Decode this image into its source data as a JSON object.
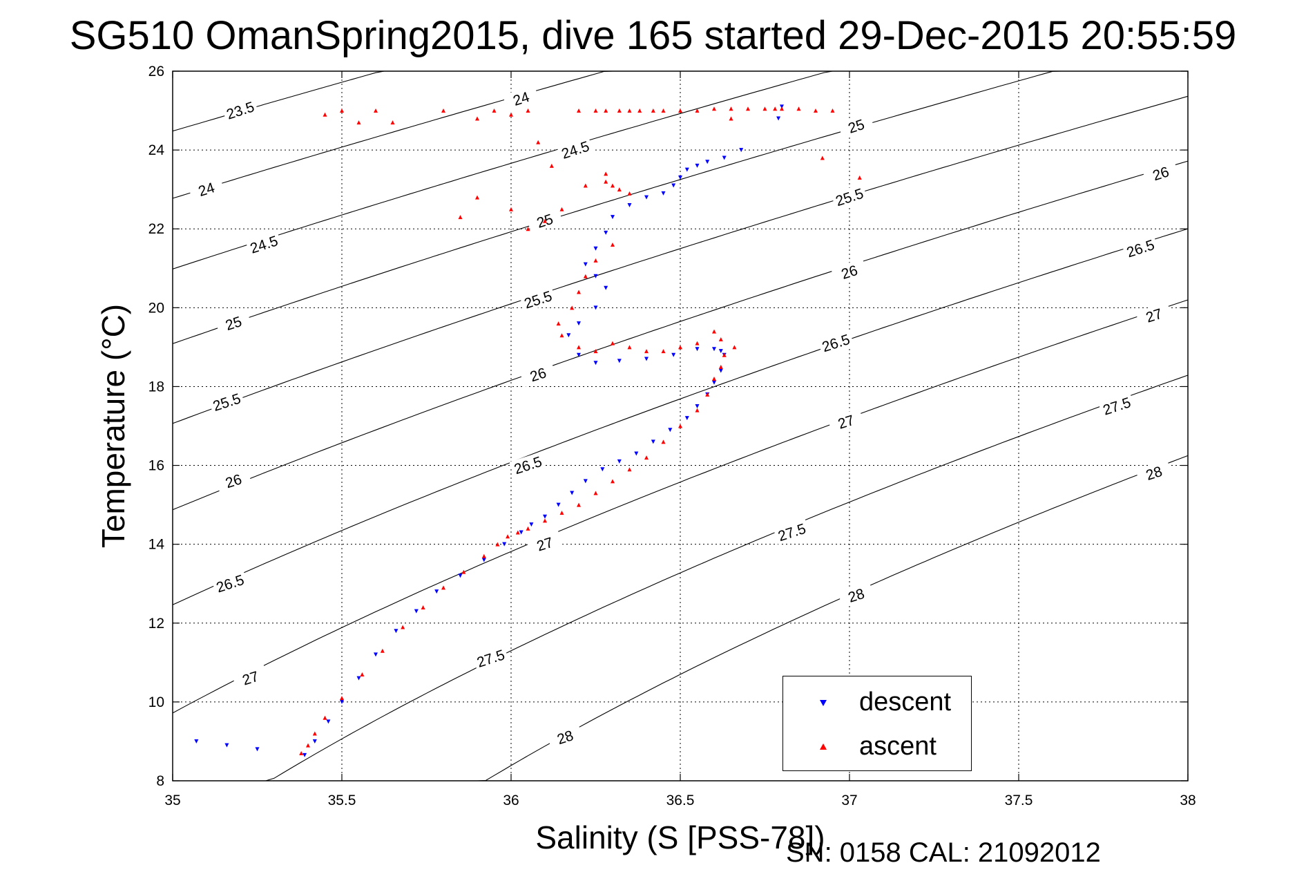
{
  "title": "SG510 OmanSpring2015, dive 165 started 29-Dec-2015 20:55:59",
  "footer_note": "SN: 0158  CAL: 21092012",
  "colors": {
    "descent": "#0000ff",
    "ascent": "#ff0000",
    "axes": "#000000",
    "grid": "#000000"
  },
  "legend": {
    "position": "bottom-right",
    "items": [
      {
        "label": "descent",
        "color": "#0000ff",
        "marker": "triangle-down"
      },
      {
        "label": "ascent",
        "color": "#ff0000",
        "marker": "triangle-up"
      }
    ]
  },
  "chart_data": {
    "type": "scatter",
    "title": "SG510 OmanSpring2015, dive 165 started 29-Dec-2015 20:55:59",
    "xlabel": "Salinity (S [PSS-78])",
    "ylabel": "Temperature (°C)",
    "xlim": [
      35,
      38
    ],
    "ylim": [
      8,
      26
    ],
    "xticks": [
      "35",
      "35.5",
      "36",
      "36.5",
      "37",
      "37.5",
      "38"
    ],
    "yticks": [
      "8",
      "10",
      "12",
      "14",
      "16",
      "18",
      "20",
      "22",
      "24",
      "26"
    ],
    "grid": "dotted",
    "density_contours": {
      "levels": [
        23.5,
        24,
        24.5,
        25,
        25.5,
        26,
        26.5,
        27,
        27.5,
        28
      ],
      "labels": [
        {
          "text": "23.5",
          "s": 35.2,
          "t": 25.0
        },
        {
          "text": "24",
          "s": 36.03,
          "t": 25.3
        },
        {
          "text": "25",
          "s": 37.02,
          "t": 24.6
        },
        {
          "text": "24",
          "s": 35.1,
          "t": 23.0
        },
        {
          "text": "24.5",
          "s": 36.19,
          "t": 24.0
        },
        {
          "text": "25.5",
          "s": 37.0,
          "t": 22.8
        },
        {
          "text": "26",
          "s": 37.92,
          "t": 23.4
        },
        {
          "text": "24.5",
          "s": 35.27,
          "t": 21.6
        },
        {
          "text": "25",
          "s": 36.1,
          "t": 22.2
        },
        {
          "text": "26",
          "s": 37.0,
          "t": 20.9
        },
        {
          "text": "26.5",
          "s": 37.86,
          "t": 21.5
        },
        {
          "text": "25",
          "s": 35.18,
          "t": 19.6
        },
        {
          "text": "25.5",
          "s": 36.08,
          "t": 20.2
        },
        {
          "text": "26.5",
          "s": 36.96,
          "t": 19.1
        },
        {
          "text": "27",
          "s": 37.9,
          "t": 19.8
        },
        {
          "text": "25.5",
          "s": 35.16,
          "t": 17.6
        },
        {
          "text": "26",
          "s": 36.08,
          "t": 18.3
        },
        {
          "text": "27",
          "s": 36.99,
          "t": 17.1
        },
        {
          "text": "27.5",
          "s": 37.79,
          "t": 17.5
        },
        {
          "text": "26",
          "s": 35.18,
          "t": 15.6
        },
        {
          "text": "26.5",
          "s": 36.05,
          "t": 16.0
        },
        {
          "text": "27.5",
          "s": 36.83,
          "t": 14.3
        },
        {
          "text": "28",
          "s": 37.9,
          "t": 15.8
        },
        {
          "text": "26.5",
          "s": 35.17,
          "t": 13.0
        },
        {
          "text": "27",
          "s": 36.1,
          "t": 14.0
        },
        {
          "text": "28",
          "s": 37.02,
          "t": 12.7
        },
        {
          "text": "27",
          "s": 35.23,
          "t": 10.6
        },
        {
          "text": "27.5",
          "s": 35.94,
          "t": 11.1
        },
        {
          "text": "28",
          "s": 36.16,
          "t": 9.1
        }
      ]
    },
    "series": [
      {
        "name": "descent",
        "color": "#0000ff",
        "marker": "triangle-down",
        "x": [
          35.07,
          35.16,
          35.25,
          35.39,
          35.42,
          35.46,
          35.5,
          35.55,
          35.6,
          35.66,
          35.72,
          35.78,
          35.85,
          35.92,
          35.98,
          36.03,
          36.06,
          36.1,
          36.14,
          36.18,
          36.22,
          36.27,
          36.32,
          36.37,
          36.42,
          36.47,
          36.52,
          36.55,
          36.58,
          36.6,
          36.62,
          36.63,
          36.62,
          36.6,
          36.55,
          36.48,
          36.4,
          36.32,
          36.25,
          36.2,
          36.17,
          36.2,
          36.25,
          36.28,
          36.25,
          36.22,
          36.25,
          36.28,
          36.3,
          36.35,
          36.4,
          36.45,
          36.48,
          36.5,
          36.52,
          36.55,
          36.58,
          36.63,
          36.68,
          36.8,
          36.79
        ],
        "y": [
          9.0,
          8.9,
          8.8,
          8.65,
          9.0,
          9.5,
          10.0,
          10.6,
          11.2,
          11.8,
          12.3,
          12.8,
          13.2,
          13.6,
          14.0,
          14.3,
          14.5,
          14.7,
          15.0,
          15.3,
          15.6,
          15.9,
          16.1,
          16.3,
          16.6,
          16.9,
          17.2,
          17.5,
          17.8,
          18.1,
          18.4,
          18.8,
          18.9,
          18.95,
          18.95,
          18.8,
          18.7,
          18.65,
          18.6,
          18.8,
          19.3,
          19.6,
          20.0,
          20.5,
          20.8,
          21.1,
          21.5,
          21.9,
          22.3,
          22.6,
          22.8,
          22.9,
          23.1,
          23.3,
          23.5,
          23.6,
          23.7,
          23.8,
          24.0,
          25.1,
          24.8
        ]
      },
      {
        "name": "ascent",
        "color": "#ff0000",
        "marker": "triangle-up",
        "x": [
          35.38,
          35.4,
          35.42,
          35.45,
          35.5,
          35.56,
          35.62,
          35.68,
          35.74,
          35.8,
          35.86,
          35.92,
          35.96,
          35.99,
          36.02,
          36.05,
          36.1,
          36.15,
          36.2,
          36.25,
          36.3,
          36.35,
          36.4,
          36.45,
          36.5,
          36.55,
          36.58,
          36.6,
          36.62,
          36.63,
          36.66,
          36.62,
          36.6,
          36.55,
          36.5,
          36.45,
          36.4,
          36.35,
          36.3,
          36.25,
          36.2,
          36.15,
          36.14,
          36.18,
          36.2,
          36.22,
          36.25,
          36.3,
          36.35,
          36.28,
          36.22,
          36.15,
          36.1,
          36.05,
          36.0,
          35.9,
          35.85,
          35.65,
          35.6,
          35.55,
          35.5,
          35.45,
          35.8,
          35.9,
          35.95,
          36.0,
          36.05,
          36.08,
          36.12,
          36.2,
          36.25,
          36.28,
          36.32,
          36.35,
          36.38,
          36.42,
          36.45,
          36.5,
          36.55,
          36.6,
          36.65,
          36.7,
          36.75,
          36.78,
          36.8,
          36.85,
          36.9,
          36.95,
          36.92,
          37.03,
          36.65,
          36.3,
          36.32,
          36.28
        ],
        "y": [
          8.7,
          8.9,
          9.2,
          9.6,
          10.1,
          10.7,
          11.3,
          11.9,
          12.4,
          12.9,
          13.3,
          13.7,
          14.0,
          14.2,
          14.3,
          14.4,
          14.6,
          14.8,
          15.0,
          15.3,
          15.6,
          15.9,
          16.2,
          16.6,
          17.0,
          17.4,
          17.8,
          18.2,
          18.5,
          18.8,
          19.0,
          19.2,
          19.4,
          19.1,
          19.0,
          18.9,
          18.9,
          19.0,
          19.1,
          18.9,
          19.0,
          19.3,
          19.6,
          20.0,
          20.4,
          20.8,
          21.2,
          21.6,
          22.9,
          23.4,
          23.1,
          22.5,
          22.2,
          22.0,
          22.5,
          22.8,
          22.3,
          24.7,
          25.0,
          24.7,
          25.0,
          24.9,
          25.0,
          24.8,
          25.0,
          24.9,
          25.0,
          24.2,
          23.6,
          25.0,
          25.0,
          25.0,
          25.0,
          25.0,
          25.0,
          25.0,
          25.0,
          25.0,
          25.0,
          25.05,
          25.05,
          25.05,
          25.05,
          25.05,
          25.05,
          25.05,
          25.0,
          25.0,
          23.8,
          23.3,
          24.8,
          23.1,
          23.0,
          23.2
        ]
      }
    ]
  }
}
